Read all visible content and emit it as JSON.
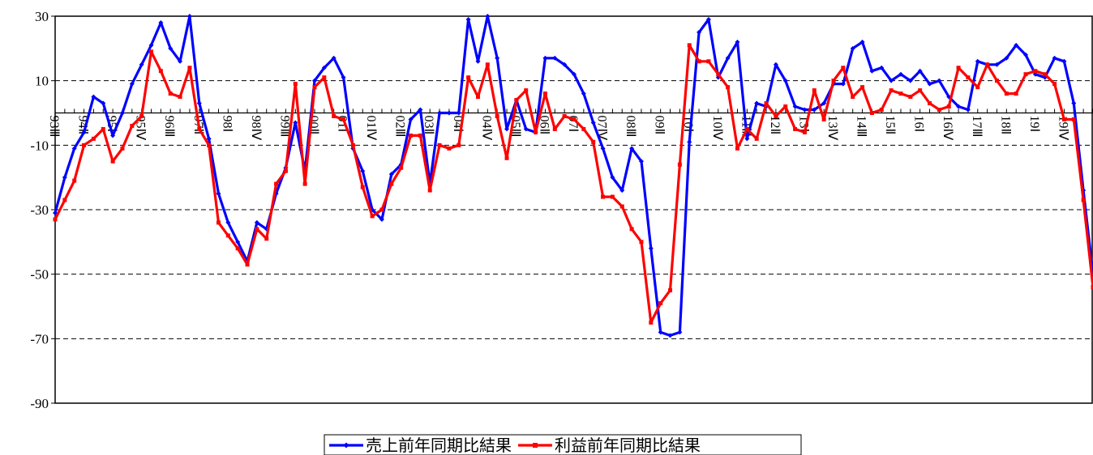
{
  "chart_data": {
    "type": "line",
    "categories": [
      "93Ⅲ",
      null,
      null,
      "94Ⅱ",
      null,
      null,
      "95Ⅰ",
      null,
      null,
      "95Ⅳ",
      null,
      null,
      "96Ⅲ",
      null,
      null,
      "97Ⅱ",
      null,
      null,
      "98Ⅰ",
      null,
      null,
      "98Ⅳ",
      null,
      null,
      "99Ⅲ",
      null,
      null,
      "00Ⅱ",
      null,
      null,
      "01Ⅰ",
      null,
      null,
      "01Ⅳ",
      null,
      null,
      "02Ⅲ",
      null,
      null,
      "03Ⅱ",
      null,
      null,
      "04Ⅰ",
      null,
      null,
      "04Ⅳ",
      null,
      null,
      "05Ⅲ",
      null,
      null,
      "06Ⅱ",
      null,
      null,
      "07Ⅰ",
      null,
      null,
      "07Ⅳ",
      null,
      null,
      "08Ⅲ",
      null,
      null,
      "09Ⅱ",
      null,
      null,
      "10Ⅰ",
      null,
      null,
      "10Ⅳ",
      null,
      null,
      "11Ⅲ",
      null,
      null,
      "12Ⅱ",
      null,
      null,
      "13Ⅰ",
      null,
      null,
      "13Ⅳ",
      null,
      null,
      "14Ⅲ",
      null,
      null,
      "15Ⅱ",
      null,
      null,
      "16Ⅰ",
      null,
      null,
      "16Ⅳ",
      null,
      null,
      "17Ⅲ",
      null,
      null,
      "18Ⅱ",
      null,
      null,
      "19Ⅰ",
      null,
      null,
      "19Ⅳ",
      null,
      null,
      null
    ],
    "series": [
      {
        "name": "売上前年同期比結果",
        "color": "#0000ff",
        "marker": "diamond",
        "values": [
          -31,
          -20,
          -11,
          -6,
          5,
          3,
          -7,
          0,
          9,
          15,
          21,
          28,
          20,
          16,
          30,
          3,
          -8,
          -25,
          -34,
          -40,
          -46,
          -34,
          -36,
          -25,
          -17,
          -3,
          -18,
          10,
          14,
          17,
          11,
          -11,
          -18,
          -30,
          -33,
          -19,
          -16,
          -2,
          1,
          -22,
          0,
          0,
          0,
          29,
          16,
          30,
          17,
          -5,
          4,
          -5,
          -6,
          17,
          17,
          15,
          12,
          6,
          -3,
          -11,
          -20,
          -24,
          -11,
          -15,
          -42,
          -68,
          -69,
          -68,
          -9,
          25,
          29,
          11,
          17,
          22,
          -8,
          3,
          2,
          15,
          10,
          2,
          1,
          1,
          3,
          9,
          9,
          20,
          22,
          13,
          14,
          10,
          12,
          10,
          13,
          9,
          10,
          5,
          2,
          1,
          16,
          15,
          15,
          17,
          21,
          18,
          12,
          11,
          17,
          16,
          3,
          -24,
          -50
        ]
      },
      {
        "name": "利益前年同期比結果",
        "color": "#ff0000",
        "marker": "square",
        "values": [
          -33,
          -27,
          -21,
          -10,
          -8,
          -5,
          -15,
          -11,
          -4,
          -1,
          19,
          13,
          6,
          5,
          14,
          -5,
          -10,
          -34,
          -38,
          -42,
          -47,
          -36,
          -39,
          -22,
          -18,
          9,
          -22,
          8,
          11,
          -1,
          -2,
          -10,
          -23,
          -32,
          -30,
          -22,
          -17,
          -7,
          -7,
          -24,
          -10,
          -11,
          -10,
          11,
          5,
          15,
          -1,
          -14,
          4,
          7,
          -6,
          6,
          -5,
          -1,
          -2,
          -5,
          -9,
          -26,
          -26,
          -29,
          -36,
          -40,
          -65,
          -59,
          -55,
          -16,
          21,
          16,
          16,
          12,
          8,
          -11,
          -5,
          -8,
          3,
          -1,
          2,
          -5,
          -6,
          7,
          -2,
          10,
          14,
          5,
          8,
          0,
          1,
          7,
          6,
          5,
          7,
          3,
          1,
          2,
          14,
          11,
          8,
          15,
          10,
          6,
          6,
          12,
          13,
          12,
          9,
          -2,
          -2,
          -27,
          -54
        ]
      }
    ],
    "ylim": [
      -90,
      30
    ],
    "yticks": [
      30,
      10,
      -10,
      -30,
      -50,
      -70,
      -90
    ],
    "grid": true,
    "legend": "bottom"
  }
}
